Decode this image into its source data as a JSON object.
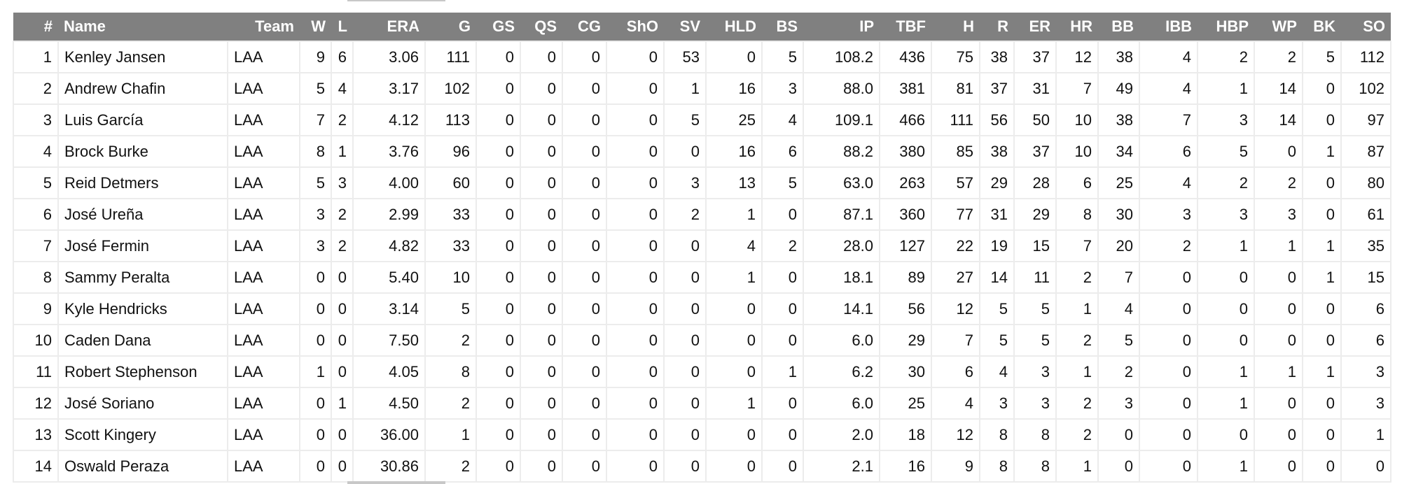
{
  "table": {
    "columns": [
      "#",
      "Name",
      "Team",
      "W",
      "L",
      "ERA",
      "G",
      "GS",
      "QS",
      "CG",
      "ShO",
      "SV",
      "HLD",
      "BS",
      "IP",
      "TBF",
      "H",
      "R",
      "ER",
      "HR",
      "BB",
      "IBB",
      "HBP",
      "WP",
      "BK",
      "SO"
    ],
    "rows": [
      [
        "1",
        "Kenley Jansen",
        "LAA",
        "9",
        "6",
        "3.06",
        "111",
        "0",
        "0",
        "0",
        "0",
        "53",
        "0",
        "5",
        "108.2",
        "436",
        "75",
        "38",
        "37",
        "12",
        "38",
        "4",
        "2",
        "2",
        "5",
        "112"
      ],
      [
        "2",
        "Andrew Chafin",
        "LAA",
        "5",
        "4",
        "3.17",
        "102",
        "0",
        "0",
        "0",
        "0",
        "1",
        "16",
        "3",
        "88.0",
        "381",
        "81",
        "37",
        "31",
        "7",
        "49",
        "4",
        "1",
        "14",
        "0",
        "102"
      ],
      [
        "3",
        "Luis García",
        "LAA",
        "7",
        "2",
        "4.12",
        "113",
        "0",
        "0",
        "0",
        "0",
        "5",
        "25",
        "4",
        "109.1",
        "466",
        "111",
        "56",
        "50",
        "10",
        "38",
        "7",
        "3",
        "14",
        "0",
        "97"
      ],
      [
        "4",
        "Brock Burke",
        "LAA",
        "8",
        "1",
        "3.76",
        "96",
        "0",
        "0",
        "0",
        "0",
        "0",
        "16",
        "6",
        "88.2",
        "380",
        "85",
        "38",
        "37",
        "10",
        "34",
        "6",
        "5",
        "0",
        "1",
        "87"
      ],
      [
        "5",
        "Reid Detmers",
        "LAA",
        "5",
        "3",
        "4.00",
        "60",
        "0",
        "0",
        "0",
        "0",
        "3",
        "13",
        "5",
        "63.0",
        "263",
        "57",
        "29",
        "28",
        "6",
        "25",
        "4",
        "2",
        "2",
        "0",
        "80"
      ],
      [
        "6",
        "José Ureña",
        "LAA",
        "3",
        "2",
        "2.99",
        "33",
        "0",
        "0",
        "0",
        "0",
        "2",
        "1",
        "0",
        "87.1",
        "360",
        "77",
        "31",
        "29",
        "8",
        "30",
        "3",
        "3",
        "3",
        "0",
        "61"
      ],
      [
        "7",
        "José Fermin",
        "LAA",
        "3",
        "2",
        "4.82",
        "33",
        "0",
        "0",
        "0",
        "0",
        "0",
        "4",
        "2",
        "28.0",
        "127",
        "22",
        "19",
        "15",
        "7",
        "20",
        "2",
        "1",
        "1",
        "1",
        "35"
      ],
      [
        "8",
        "Sammy Peralta",
        "LAA",
        "0",
        "0",
        "5.40",
        "10",
        "0",
        "0",
        "0",
        "0",
        "0",
        "1",
        "0",
        "18.1",
        "89",
        "27",
        "14",
        "11",
        "2",
        "7",
        "0",
        "0",
        "0",
        "1",
        "15"
      ],
      [
        "9",
        "Kyle Hendricks",
        "LAA",
        "0",
        "0",
        "3.14",
        "5",
        "0",
        "0",
        "0",
        "0",
        "0",
        "0",
        "0",
        "14.1",
        "56",
        "12",
        "5",
        "5",
        "1",
        "4",
        "0",
        "0",
        "0",
        "0",
        "6"
      ],
      [
        "10",
        "Caden Dana",
        "LAA",
        "0",
        "0",
        "7.50",
        "2",
        "0",
        "0",
        "0",
        "0",
        "0",
        "0",
        "0",
        "6.0",
        "29",
        "7",
        "5",
        "5",
        "2",
        "5",
        "0",
        "0",
        "0",
        "0",
        "6"
      ],
      [
        "11",
        "Robert Stephenson",
        "LAA",
        "1",
        "0",
        "4.05",
        "8",
        "0",
        "0",
        "0",
        "0",
        "0",
        "0",
        "1",
        "6.2",
        "30",
        "6",
        "4",
        "3",
        "1",
        "2",
        "0",
        "1",
        "1",
        "1",
        "3"
      ],
      [
        "12",
        "José Soriano",
        "LAA",
        "0",
        "1",
        "4.50",
        "2",
        "0",
        "0",
        "0",
        "0",
        "0",
        "1",
        "0",
        "6.0",
        "25",
        "4",
        "3",
        "3",
        "2",
        "3",
        "0",
        "1",
        "0",
        "0",
        "3"
      ],
      [
        "13",
        "Scott Kingery",
        "LAA",
        "0",
        "0",
        "36.00",
        "1",
        "0",
        "0",
        "0",
        "0",
        "0",
        "0",
        "0",
        "2.0",
        "18",
        "12",
        "8",
        "8",
        "2",
        "0",
        "0",
        "0",
        "0",
        "0",
        "1"
      ],
      [
        "14",
        "Oswald Peraza",
        "LAA",
        "0",
        "0",
        "30.86",
        "2",
        "0",
        "0",
        "0",
        "0",
        "0",
        "0",
        "0",
        "2.1",
        "16",
        "9",
        "8",
        "8",
        "1",
        "0",
        "0",
        "1",
        "0",
        "0",
        "0"
      ]
    ]
  },
  "colors": {
    "header_bg": "#808080",
    "header_text": "#ffffff",
    "cell_border": "#ececec"
  }
}
